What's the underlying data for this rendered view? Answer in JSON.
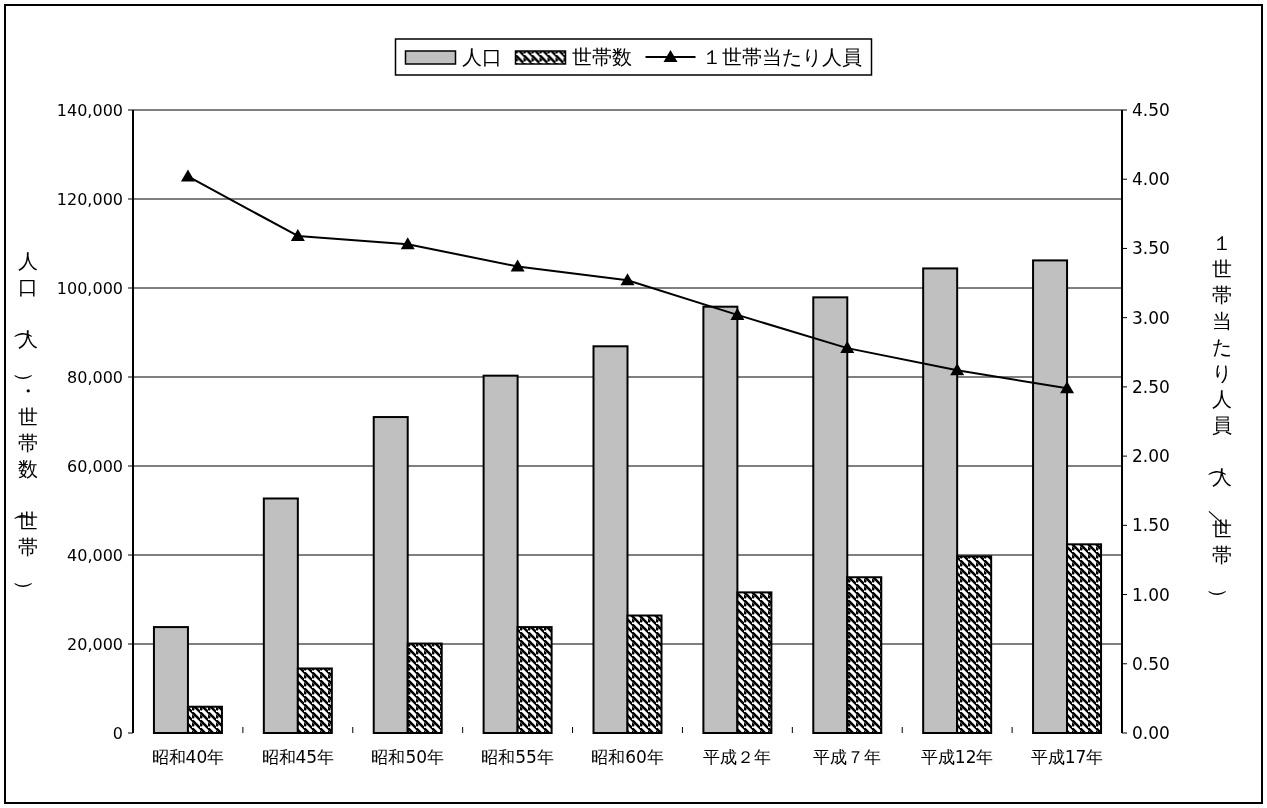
{
  "chart_data": {
    "type": "bar",
    "categories": [
      "昭和40年",
      "昭和45年",
      "昭和50年",
      "昭和55年",
      "昭和60年",
      "平成２年",
      "平成７年",
      "平成12年",
      "平成17年"
    ],
    "ylabel": "人口（人）・世帯数（世帯）",
    "y2label": "１世帯当たり人員（人／世帯）",
    "series": [
      {
        "name": "人口",
        "color": "#c0c0c0",
        "values": [
          23800,
          52700,
          71000,
          80300,
          86900,
          95800,
          97900,
          104400,
          106200
        ]
      },
      {
        "name": "世帯数",
        "color": "#000000",
        "values": [
          5900,
          14500,
          20100,
          23800,
          26400,
          31600,
          35000,
          39700,
          42400
        ]
      },
      {
        "name": "１世帯当たり人員",
        "type": "line",
        "axis": "y2",
        "color": "#000000",
        "marker": "triangle",
        "values": [
          4.02,
          3.59,
          3.53,
          3.37,
          3.27,
          3.02,
          2.78,
          2.62,
          2.49
        ]
      }
    ],
    "ylim": [
      0,
      140000
    ],
    "yticks": [
      {
        "value": 0,
        "label": "0"
      },
      {
        "value": 20000,
        "label": "20,000"
      },
      {
        "value": 40000,
        "label": "40,000"
      },
      {
        "value": 60000,
        "label": "60,000"
      },
      {
        "value": 80000,
        "label": "80,000"
      },
      {
        "value": 100000,
        "label": "100,000"
      },
      {
        "value": 120000,
        "label": "120,000"
      },
      {
        "value": 140000,
        "label": "140,000"
      }
    ],
    "y2lim": [
      0,
      4.5
    ],
    "y2ticks": [
      {
        "value": 0,
        "label": "0.00"
      },
      {
        "value": 0.5,
        "label": "0.50"
      },
      {
        "value": 1,
        "label": "1.00"
      },
      {
        "value": 1.5,
        "label": "1.50"
      },
      {
        "value": 2,
        "label": "2.00"
      },
      {
        "value": 2.5,
        "label": "2.50"
      },
      {
        "value": 3,
        "label": "3.00"
      },
      {
        "value": 3.5,
        "label": "3.50"
      },
      {
        "value": 4,
        "label": "4.00"
      },
      {
        "value": 4.5,
        "label": "4.50"
      }
    ],
    "grid": "y",
    "legend": "top"
  }
}
